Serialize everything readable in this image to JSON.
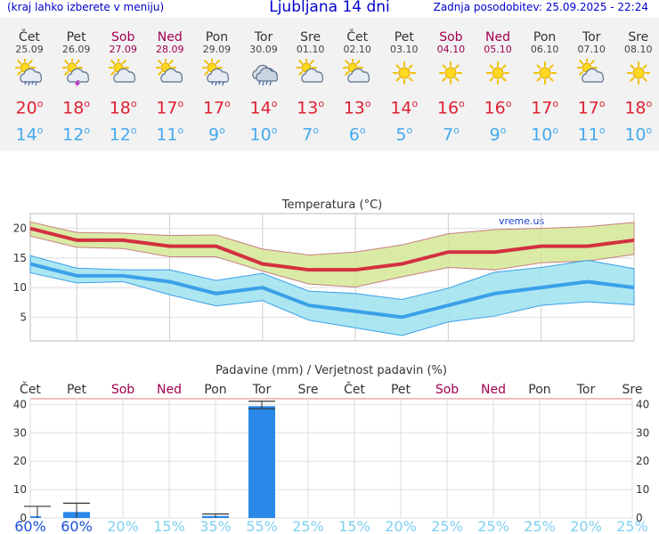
{
  "header": {
    "menu_hint": "(kraj lahko izberete v meniju)",
    "title": "Ljubljana 14 dni",
    "updated": "Zadnja posodobitev: 25.09.2025 - 22:24"
  },
  "days": [
    {
      "name": "Čet",
      "date": "25.09",
      "weekend": false,
      "icon": "sun-cloud-rain",
      "tmax": "20",
      "tmin": "14"
    },
    {
      "name": "Pet",
      "date": "26.09",
      "weekend": false,
      "icon": "sun-cloud-storm",
      "tmax": "18",
      "tmin": "12"
    },
    {
      "name": "Sob",
      "date": "27.09",
      "weekend": true,
      "icon": "sun-cloud",
      "tmax": "18",
      "tmin": "12"
    },
    {
      "name": "Ned",
      "date": "28.09",
      "weekend": true,
      "icon": "sun-cloud",
      "tmax": "17",
      "tmin": "11"
    },
    {
      "name": "Pon",
      "date": "29.09",
      "weekend": false,
      "icon": "sun-cloud-rain",
      "tmax": "17",
      "tmin": "9"
    },
    {
      "name": "Tor",
      "date": "30.09",
      "weekend": false,
      "icon": "cloud-rain",
      "tmax": "14",
      "tmin": "10"
    },
    {
      "name": "Sre",
      "date": "01.10",
      "weekend": false,
      "icon": "sun-cloud",
      "tmax": "13",
      "tmin": "7"
    },
    {
      "name": "Čet",
      "date": "02.10",
      "weekend": false,
      "icon": "sun-cloud",
      "tmax": "13",
      "tmin": "6"
    },
    {
      "name": "Pet",
      "date": "03.10",
      "weekend": false,
      "icon": "sun",
      "tmax": "14",
      "tmin": "5"
    },
    {
      "name": "Sob",
      "date": "04.10",
      "weekend": true,
      "icon": "sun",
      "tmax": "16",
      "tmin": "7"
    },
    {
      "name": "Ned",
      "date": "05.10",
      "weekend": true,
      "icon": "sun",
      "tmax": "16",
      "tmin": "9"
    },
    {
      "name": "Pon",
      "date": "06.10",
      "weekend": false,
      "icon": "sun",
      "tmax": "17",
      "tmin": "10"
    },
    {
      "name": "Tor",
      "date": "07.10",
      "weekend": false,
      "icon": "sun-cloud",
      "tmax": "17",
      "tmin": "11"
    },
    {
      "name": "Sre",
      "date": "08.10",
      "weekend": false,
      "icon": "sun",
      "tmax": "18",
      "tmin": "10"
    }
  ],
  "degree_symbol": "o",
  "colors": {
    "max_line": "#d33040",
    "max_band": "#d4e896",
    "min_line": "#3aa0e8",
    "min_band": "#9ee2ee",
    "bar": "#2a88e8",
    "weekend": "#a0004f",
    "pct_strong": "#1a4fd6",
    "pct_light": "#7fd0f0"
  },
  "chart_data": [
    {
      "type": "line",
      "title": "Temperatura (°C)",
      "watermark": "vreme.us",
      "categories": [
        "Čet",
        "Pet",
        "Sob",
        "Ned",
        "Pon",
        "Tor",
        "Sre",
        "Čet",
        "Pet",
        "Sob",
        "Ned",
        "Pon",
        "Tor",
        "Sre"
      ],
      "yticks": [
        5,
        10,
        15,
        20
      ],
      "ylim": [
        1,
        22.5
      ],
      "series": [
        {
          "name": "max",
          "values": [
            20,
            18,
            18,
            17,
            17,
            14,
            13,
            13,
            14,
            16,
            16,
            17,
            17,
            18
          ],
          "band_low": [
            18.7,
            16.8,
            16.6,
            15.2,
            15.2,
            12.8,
            10.6,
            10.1,
            11.8,
            13.4,
            13.0,
            14.2,
            14.5,
            15.6
          ],
          "band_high": [
            21.1,
            19.3,
            19.2,
            18.8,
            18.9,
            16.5,
            15.5,
            16.0,
            17.2,
            19.1,
            19.8,
            20.0,
            20.3,
            21.0
          ]
        },
        {
          "name": "min",
          "values": [
            14,
            12,
            12,
            11,
            9,
            10,
            7,
            6,
            5,
            7,
            9,
            10,
            11,
            10
          ],
          "band_low": [
            12.5,
            10.8,
            11.0,
            8.8,
            6.9,
            7.8,
            4.5,
            3.2,
            1.9,
            4.2,
            5.2,
            7.0,
            7.6,
            7.1
          ],
          "band_high": [
            15.4,
            13.3,
            13.0,
            13.0,
            11.2,
            12.4,
            9.4,
            9.0,
            8.0,
            9.9,
            12.6,
            13.4,
            14.6,
            13.2
          ]
        }
      ]
    },
    {
      "type": "bar",
      "title": "Padavine (mm) / Verjetnost padavin (%)",
      "categories": [
        "Čet",
        "Pet",
        "Sob",
        "Ned",
        "Pon",
        "Tor",
        "Sre",
        "Čet",
        "Pet",
        "Sob",
        "Ned",
        "Pon",
        "Tor",
        "Sre"
      ],
      "weekend": [
        false,
        false,
        true,
        true,
        false,
        false,
        false,
        false,
        false,
        true,
        true,
        false,
        false,
        false
      ],
      "yticks": [
        0,
        10,
        20,
        30,
        40
      ],
      "ylim": [
        0,
        42
      ],
      "values": [
        0.6,
        2.1,
        0,
        0,
        0.7,
        39.4,
        0,
        0,
        0,
        0,
        0,
        0,
        0,
        0
      ],
      "err_low": [
        0,
        0,
        0,
        0,
        0,
        38.5,
        0,
        0,
        0,
        0,
        0,
        0,
        0,
        0
      ],
      "err_high": [
        4.1,
        5.2,
        0,
        0,
        1.4,
        41.1,
        0,
        0,
        0,
        0,
        0,
        0,
        0,
        0
      ],
      "probability": [
        "60%",
        "60%",
        "20%",
        "15%",
        "35%",
        "55%",
        "25%",
        "15%",
        "20%",
        "25%",
        "25%",
        "25%",
        "20%",
        "25%"
      ],
      "probability_strong": [
        true,
        true,
        false,
        false,
        false,
        false,
        false,
        false,
        false,
        false,
        false,
        false,
        false,
        false
      ]
    }
  ]
}
